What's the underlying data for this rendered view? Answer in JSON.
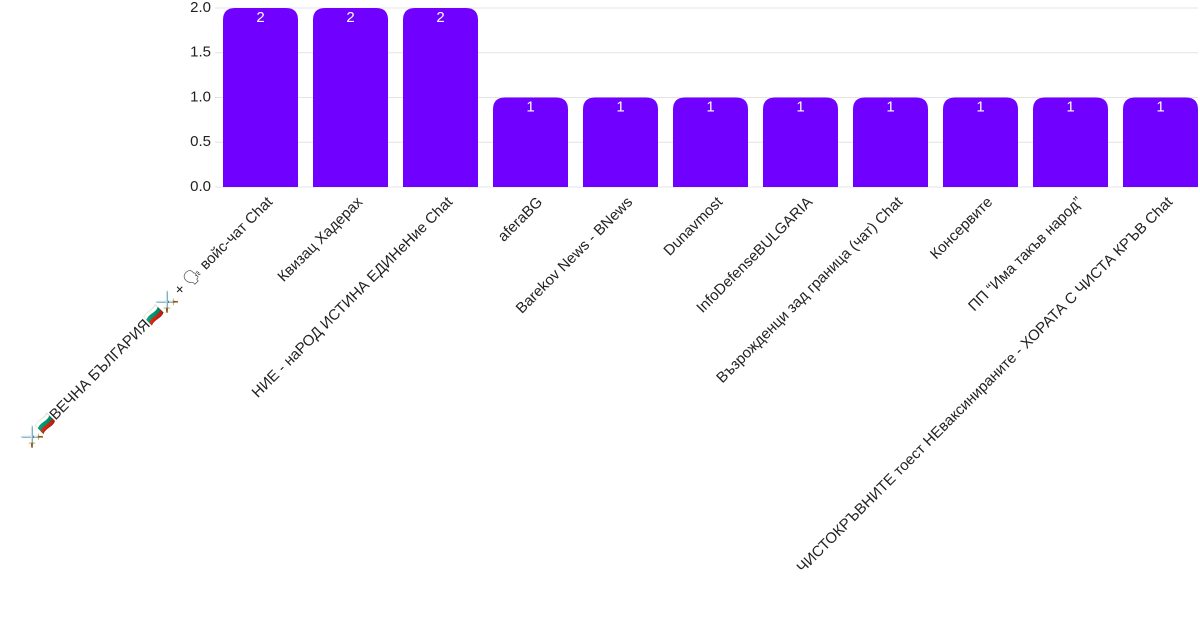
{
  "chart_data": {
    "type": "bar",
    "categories": [
      "⚔️🇧🇬ВЕЧНА БЪЛГАРИЯ🇧🇬⚔️ + 🗣 войс-чат Chat",
      "Квизац Хадерах",
      "НИЕ - наРОД ИСТИНА ЕДИНеНие Chat",
      "aferaBG",
      "Barekov News - BNews",
      "Dunavmost",
      "InfoDefenseBULGARIA",
      "Възрожденци зад граница (чат) Chat",
      "Консервите",
      "ПП “Има такъв народ”",
      "ЧИСТОКРЪВНИТЕ тоест НЕваксинираните - ХОРАТА С ЧИСТА КРЪВ Chat"
    ],
    "values": [
      2,
      2,
      2,
      1,
      1,
      1,
      1,
      1,
      1,
      1,
      1
    ],
    "color": "#7000ff",
    "ylim": [
      0,
      2
    ],
    "yticks": [
      {
        "value": 0,
        "label": "0.0"
      },
      0.5,
      {
        "value": 1,
        "label": "1.0"
      },
      1.5,
      {
        "value": 2,
        "label": "2.0"
      }
    ],
    "grid": true
  }
}
